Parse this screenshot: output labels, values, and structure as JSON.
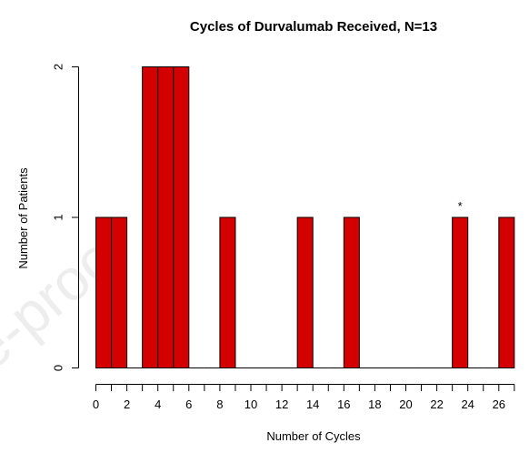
{
  "chart_data": {
    "type": "bar",
    "title": "Cycles of Durvalumab Received, N=13",
    "xlabel": "Number of Cycles",
    "ylabel": "Number of Patients",
    "x_bins": [
      0,
      1,
      2,
      3,
      4,
      5,
      6,
      7,
      8,
      9,
      10,
      11,
      12,
      13,
      14,
      15,
      16,
      17,
      18,
      19,
      20,
      21,
      22,
      23,
      24,
      25,
      26
    ],
    "values": [
      1,
      1,
      0,
      2,
      2,
      2,
      0,
      0,
      1,
      0,
      0,
      0,
      0,
      1,
      0,
      0,
      1,
      0,
      0,
      0,
      0,
      0,
      0,
      1,
      0,
      0,
      1
    ],
    "bin_width": 1,
    "xlim": [
      0,
      27
    ],
    "ylim": [
      0,
      2
    ],
    "x_ticks": [
      0,
      2,
      4,
      6,
      8,
      10,
      12,
      14,
      16,
      18,
      20,
      22,
      24,
      26
    ],
    "y_ticks": [
      0,
      1,
      2
    ],
    "bar_color": "#d40000",
    "annotations": [
      {
        "text": "*",
        "x": 23.5,
        "y": 1
      }
    ]
  },
  "watermark": "e-proof"
}
